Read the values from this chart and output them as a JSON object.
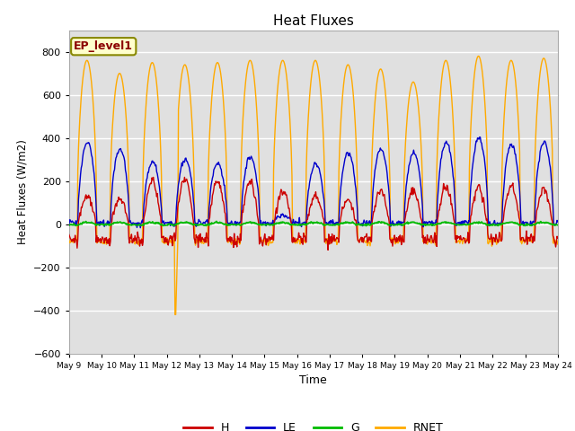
{
  "title": "Heat Fluxes",
  "xlabel": "Time",
  "ylabel": "Heat Fluxes (W/m2)",
  "ylim": [
    -600,
    900
  ],
  "yticks": [
    -600,
    -400,
    -200,
    0,
    200,
    400,
    600,
    800
  ],
  "colors": {
    "H": "#cc0000",
    "LE": "#0000cc",
    "G": "#00bb00",
    "RNET": "#ffaa00"
  },
  "legend_label": "EP_level1",
  "bg_color": "#e0e0e0",
  "grid_color": "white",
  "linewidth": 1.0,
  "day_labels": [
    "May 9",
    "May 10",
    "May 11",
    "May 12",
    "May 13",
    "May 14",
    "May 15",
    "May 16",
    "May 17",
    "May 18",
    "May 19",
    "May 20",
    "May 21",
    "May 22",
    "May 23",
    "May 24"
  ]
}
